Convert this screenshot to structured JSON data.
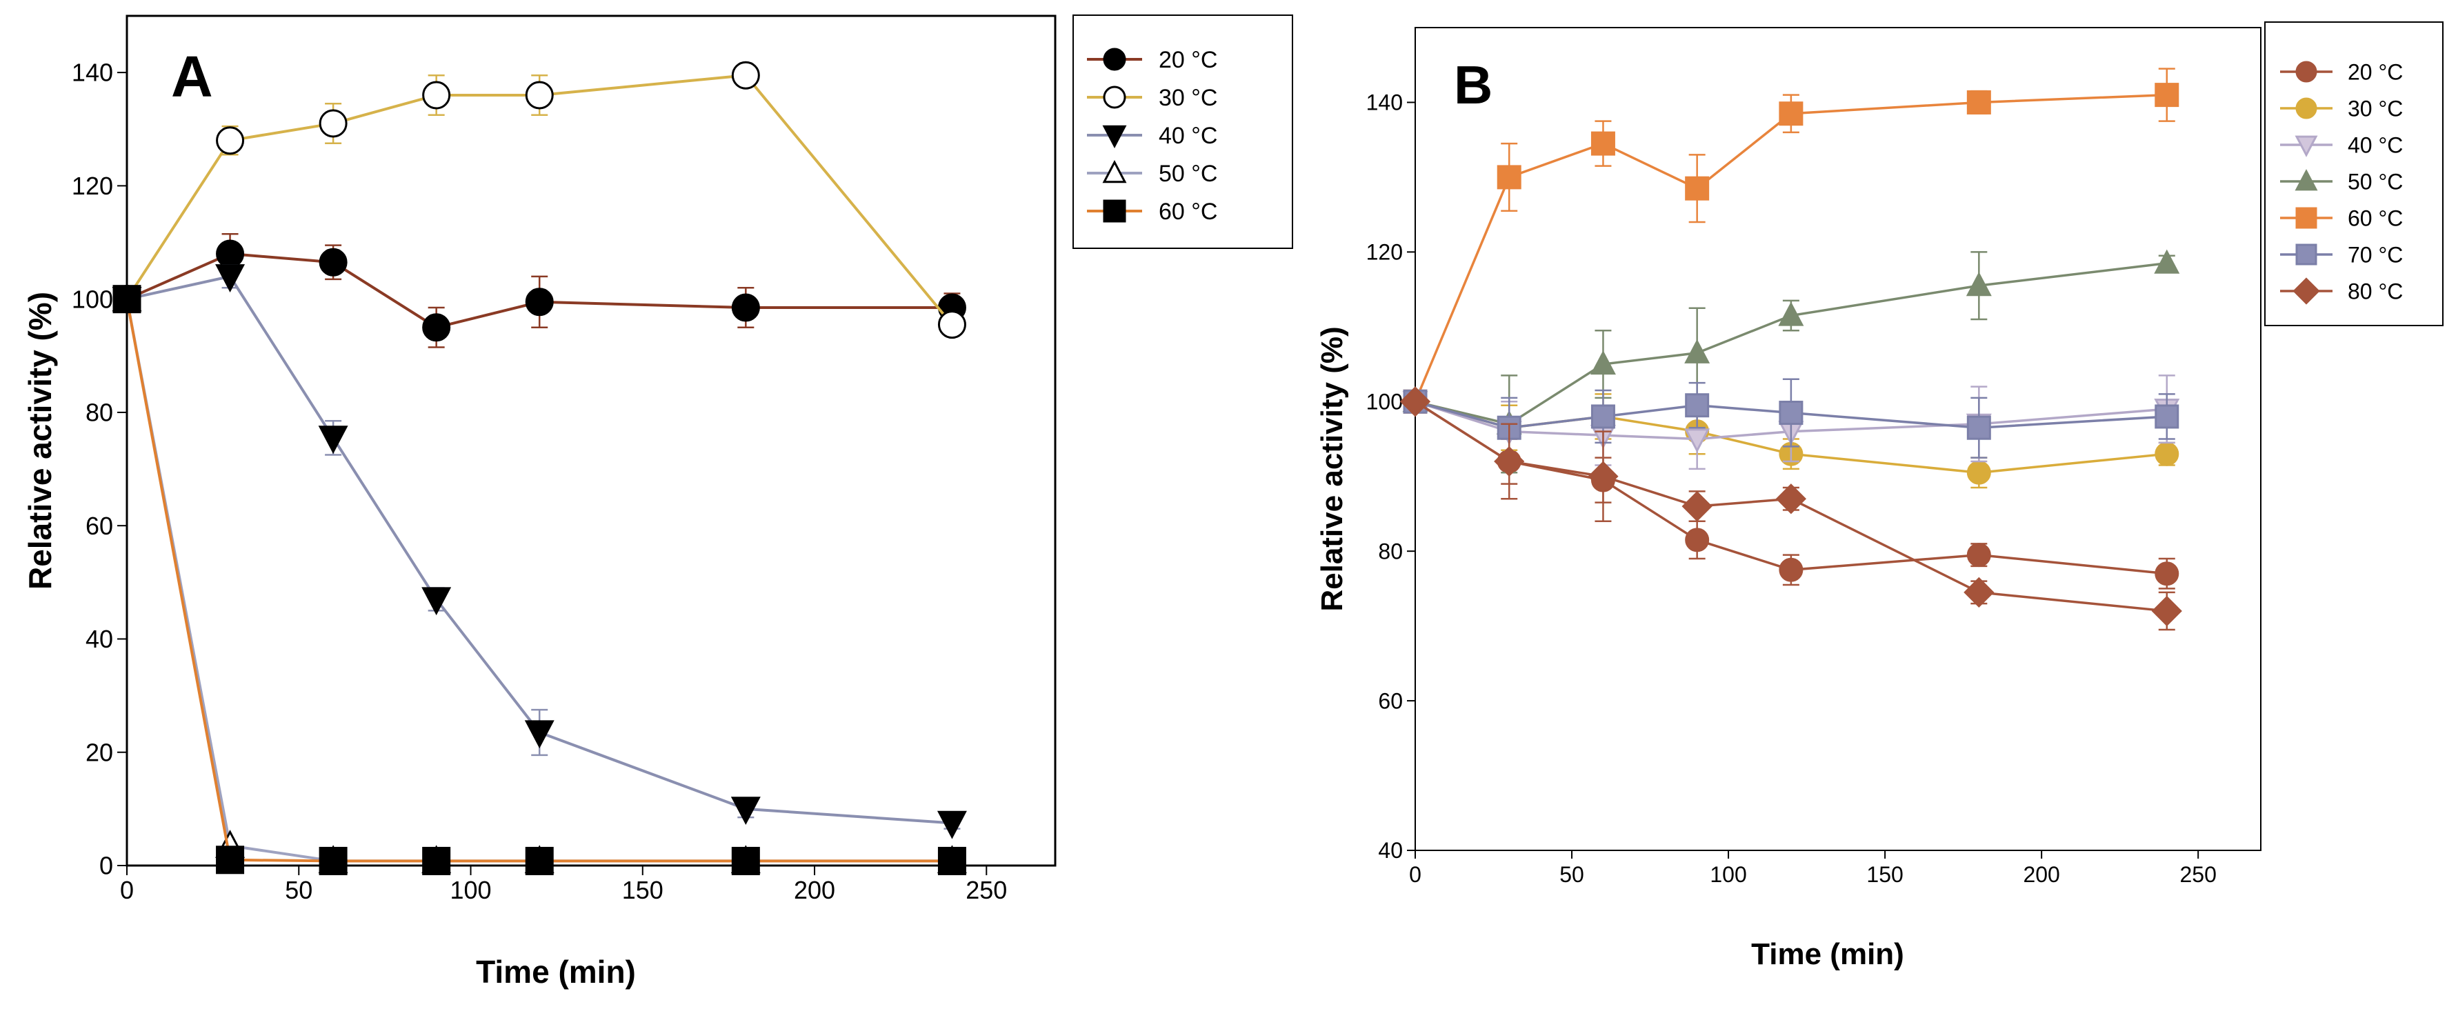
{
  "figure": {
    "panels": [
      "A",
      "B"
    ]
  },
  "chart_data": [
    {
      "panel": "A",
      "type": "line",
      "xlabel": "Time (min)",
      "ylabel": "Relative activity (%)",
      "xlim": [
        0,
        270
      ],
      "ylim": [
        0,
        150
      ],
      "xticks": [
        0,
        50,
        100,
        150,
        200,
        250
      ],
      "yticks": [
        0,
        20,
        40,
        60,
        80,
        100,
        120,
        140
      ],
      "legend_position": "top-right",
      "series": [
        {
          "name": "20 °C",
          "color": "#8a3a24",
          "marker": "circle",
          "fill": "#000000",
          "x": [
            0,
            30,
            60,
            90,
            120,
            180,
            240
          ],
          "y": [
            100,
            108,
            106.5,
            95,
            99.5,
            98.5,
            98.5
          ],
          "err": [
            0,
            3.5,
            3,
            3.5,
            4.5,
            3.5,
            2.5
          ]
        },
        {
          "name": "30 °C",
          "color": "#d6b24a",
          "marker": "circle",
          "fill": "#ffffff",
          "x": [
            0,
            30,
            60,
            90,
            120,
            180,
            240
          ],
          "y": [
            100,
            128,
            131,
            136,
            136,
            139.5,
            95.5
          ],
          "err": [
            0,
            2.5,
            3.5,
            3.5,
            3.5,
            1.5,
            1.5
          ]
        },
        {
          "name": "40 °C",
          "color": "#8a8fb0",
          "marker": "triangle-down",
          "fill": "#000000",
          "x": [
            0,
            30,
            60,
            90,
            120,
            180,
            240
          ],
          "y": [
            100,
            104,
            75.5,
            47,
            23.5,
            10,
            7.5
          ],
          "err": [
            0,
            2,
            3,
            2,
            4,
            1.5,
            1
          ]
        },
        {
          "name": "50 °C",
          "color": "#9ea2c0",
          "marker": "triangle-up",
          "fill": "#ffffff",
          "x": [
            0,
            30,
            60,
            90,
            120,
            180,
            240
          ],
          "y": [
            100,
            3.5,
            0.8,
            0.8,
            0.8,
            0.8,
            0.8
          ],
          "err": [
            0,
            0,
            0,
            0,
            0,
            0,
            0
          ]
        },
        {
          "name": "60 °C",
          "color": "#e08030",
          "marker": "square",
          "fill": "#000000",
          "x": [
            0,
            30,
            60,
            90,
            120,
            180,
            240
          ],
          "y": [
            100,
            1,
            0.8,
            0.8,
            0.8,
            0.8,
            0.8
          ],
          "err": [
            0,
            0,
            0,
            0,
            0,
            0,
            0
          ]
        }
      ]
    },
    {
      "panel": "B",
      "type": "line",
      "xlabel": "Time (min)",
      "ylabel": "Relative activity (%)",
      "xlim": [
        0,
        270
      ],
      "ylim": [
        40,
        150
      ],
      "xticks": [
        0,
        50,
        100,
        150,
        200,
        250
      ],
      "yticks": [
        40,
        60,
        80,
        100,
        120,
        140
      ],
      "legend_position": "top-right",
      "series": [
        {
          "name": "20 °C",
          "color": "#a5533a",
          "marker": "circle",
          "fill": "#a5533a",
          "x": [
            0,
            30,
            60,
            90,
            120,
            180,
            240
          ],
          "y": [
            100,
            92,
            89.5,
            81.5,
            77.5,
            79.5,
            77
          ],
          "err": [
            0,
            3,
            3,
            2.5,
            2,
            1.5,
            2
          ]
        },
        {
          "name": "30 °C",
          "color": "#d9ac3a",
          "marker": "circle",
          "fill": "#d9ac3a",
          "x": [
            0,
            30,
            60,
            90,
            120,
            180,
            240
          ],
          "y": [
            100,
            96.5,
            98,
            96,
            93,
            90.5,
            93
          ],
          "err": [
            0,
            3,
            3,
            3,
            2,
            2,
            1.5
          ]
        },
        {
          "name": "40 °C",
          "color": "#b3a8c8",
          "marker": "triangle-down",
          "fill": "#d2c6dc",
          "x": [
            0,
            30,
            60,
            90,
            120,
            180,
            240
          ],
          "y": [
            100,
            96,
            95.5,
            95,
            96,
            97,
            99
          ],
          "err": [
            0,
            4,
            4,
            4,
            4,
            5,
            4.5
          ]
        },
        {
          "name": "50 °C",
          "color": "#7a8a6e",
          "marker": "triangle-up",
          "fill": "#7a8a6e",
          "x": [
            0,
            30,
            60,
            90,
            120,
            180,
            240
          ],
          "y": [
            100,
            97,
            105,
            106.5,
            111.5,
            115.5,
            118.5
          ],
          "err": [
            0,
            6.5,
            4.5,
            6,
            2,
            4.5,
            1
          ]
        },
        {
          "name": "60 °C",
          "color": "#e8843c",
          "marker": "square",
          "fill": "#e8843c",
          "x": [
            0,
            30,
            60,
            90,
            120,
            180,
            240
          ],
          "y": [
            100,
            130,
            134.5,
            128.5,
            138.5,
            140,
            141
          ],
          "err": [
            0,
            4.5,
            3,
            4.5,
            2.5,
            1.5,
            3.5
          ]
        },
        {
          "name": "70 °C",
          "color": "#7b7fa8",
          "marker": "square",
          "fill": "#8a8db5",
          "x": [
            0,
            30,
            60,
            90,
            120,
            180,
            240
          ],
          "y": [
            100,
            96.5,
            98,
            99.5,
            98.5,
            96.5,
            98
          ],
          "err": [
            0,
            4,
            3.5,
            3,
            4.5,
            4,
            3
          ]
        },
        {
          "name": "80 °C",
          "color": "#a5533a",
          "marker": "diamond",
          "fill": "#a5533a",
          "x": [
            0,
            30,
            60,
            90,
            120,
            180,
            240
          ],
          "y": [
            100,
            92,
            90,
            86,
            87,
            74.5,
            72
          ],
          "err": [
            0,
            5,
            6,
            2,
            1.5,
            1.5,
            2.5
          ]
        }
      ]
    }
  ]
}
